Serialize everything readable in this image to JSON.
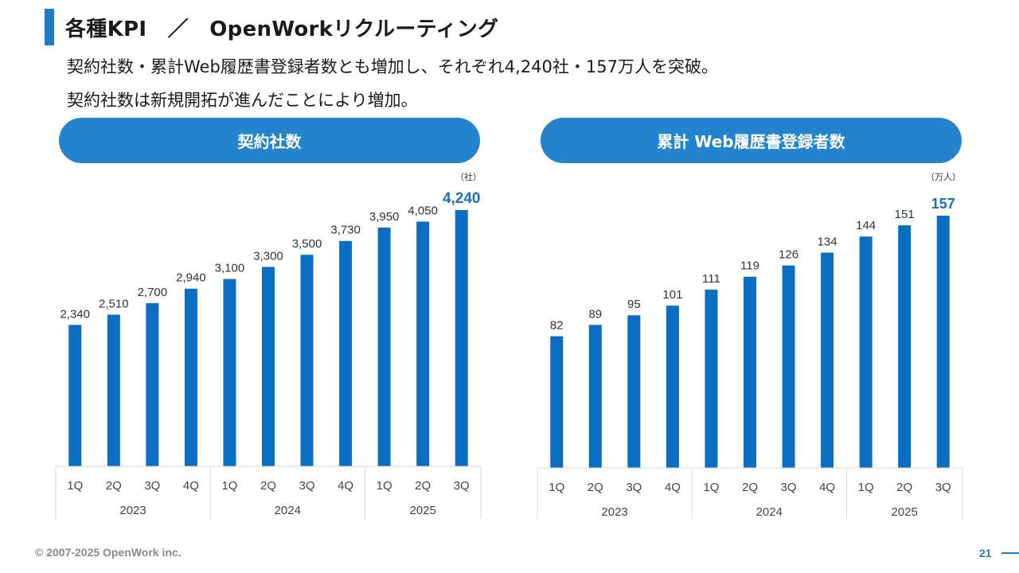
{
  "header": {
    "title": "各種KPI　／　OpenWorkリクルーティング",
    "lead_1": "契約社数・累計Web履歴書登録者数とも増加し、それぞれ4,240社・157万人を突破。",
    "lead_2": "契約社数は新規開拓が進んだことにより増加。"
  },
  "colors": {
    "accent": "#1f7bc8",
    "bar": "#0a6fc2",
    "highlight": "#1a6fbe",
    "grid": "#d9d9d9"
  },
  "chart_data": [
    {
      "type": "bar",
      "title": "契約社数",
      "unit": "（社）",
      "quarters": [
        "1Q",
        "2Q",
        "3Q",
        "4Q",
        "1Q",
        "2Q",
        "3Q",
        "4Q",
        "1Q",
        "2Q",
        "3Q"
      ],
      "years": [
        {
          "label": "2023",
          "span": 4
        },
        {
          "label": "2024",
          "span": 4
        },
        {
          "label": "2025",
          "span": 3
        }
      ],
      "values": [
        2340,
        2510,
        2700,
        2940,
        3100,
        3300,
        3500,
        3730,
        3950,
        4050,
        4240
      ],
      "labels": [
        "2,340",
        "2,510",
        "2,700",
        "2,940",
        "3,100",
        "3,300",
        "3,500",
        "3,730",
        "3,950",
        "4,050",
        "4,240"
      ],
      "highlight_last": true,
      "ylim": [
        0,
        4240
      ]
    },
    {
      "type": "bar",
      "title": "累計 Web履歴書登録者数",
      "unit": "（万人）",
      "quarters": [
        "1Q",
        "2Q",
        "3Q",
        "4Q",
        "1Q",
        "2Q",
        "3Q",
        "4Q",
        "1Q",
        "2Q",
        "3Q"
      ],
      "years": [
        {
          "label": "2023",
          "span": 4
        },
        {
          "label": "2024",
          "span": 4
        },
        {
          "label": "2025",
          "span": 3
        }
      ],
      "values": [
        82,
        89,
        95,
        101,
        111,
        119,
        126,
        134,
        144,
        151,
        157
      ],
      "labels": [
        "82",
        "89",
        "95",
        "101",
        "111",
        "119",
        "126",
        "134",
        "144",
        "151",
        "157"
      ],
      "highlight_last": true,
      "ylim": [
        0,
        157
      ]
    }
  ],
  "footer": {
    "copyright": "© 2007-2025 OpenWork inc.",
    "page": "21"
  }
}
